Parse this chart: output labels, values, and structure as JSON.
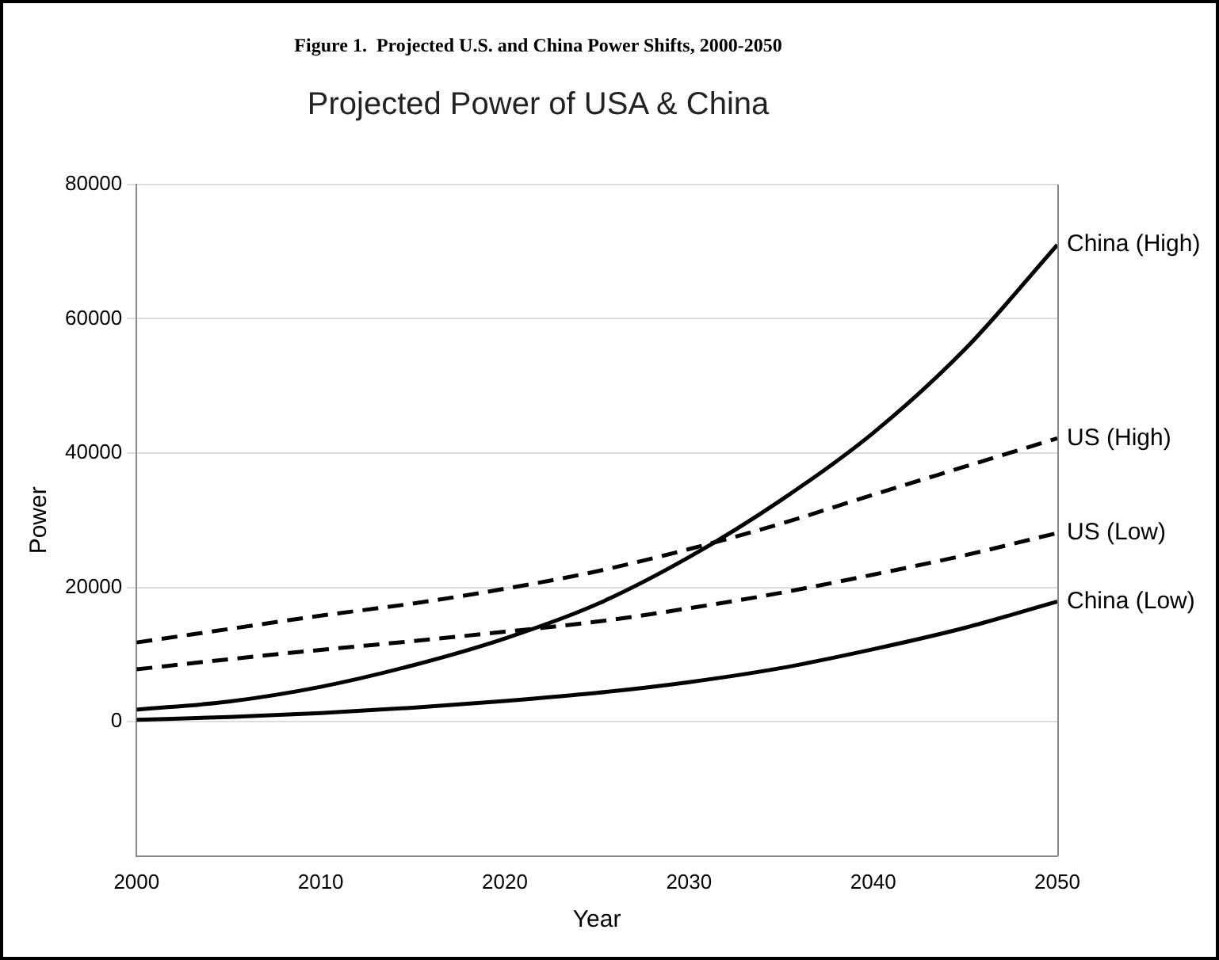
{
  "chart_data": {
    "type": "line",
    "title": "Figure 1.  Projected U.S. and China Power Shifts, 2000-2050",
    "subtitle": "Projected Power of USA & China",
    "xlabel": "Year",
    "ylabel": "Power",
    "x": [
      2000,
      2005,
      2010,
      2015,
      2020,
      2025,
      2030,
      2035,
      2040,
      2045,
      2050
    ],
    "series": [
      {
        "name": "China (High)",
        "color": "#000000",
        "line_style": "solid",
        "values": [
          1800,
          3000,
          5200,
          8400,
          12400,
          17500,
          24500,
          33000,
          43000,
          55500,
          71000
        ]
      },
      {
        "name": "US (High)",
        "color": "#000000",
        "line_style": "dashed",
        "values": [
          11800,
          13800,
          15800,
          17600,
          19800,
          22400,
          25700,
          29500,
          33800,
          38000,
          42200
        ]
      },
      {
        "name": "US (Low)",
        "color": "#000000",
        "line_style": "dashed",
        "values": [
          7800,
          9300,
          10700,
          12000,
          13400,
          14900,
          16900,
          19200,
          21900,
          24800,
          28100
        ]
      },
      {
        "name": "China (Low)",
        "color": "#000000",
        "line_style": "solid",
        "values": [
          300,
          700,
          1300,
          2100,
          3100,
          4300,
          5900,
          8000,
          10800,
          14000,
          17900
        ]
      }
    ],
    "xlim": [
      2000,
      2050
    ],
    "xticks": [
      2000,
      2010,
      2020,
      2030,
      2040,
      2050
    ],
    "ylim": [
      -20000,
      80000
    ],
    "yticks": [
      0,
      20000,
      40000,
      60000,
      80000
    ],
    "grid": "y",
    "legend": false,
    "marker": "none"
  }
}
